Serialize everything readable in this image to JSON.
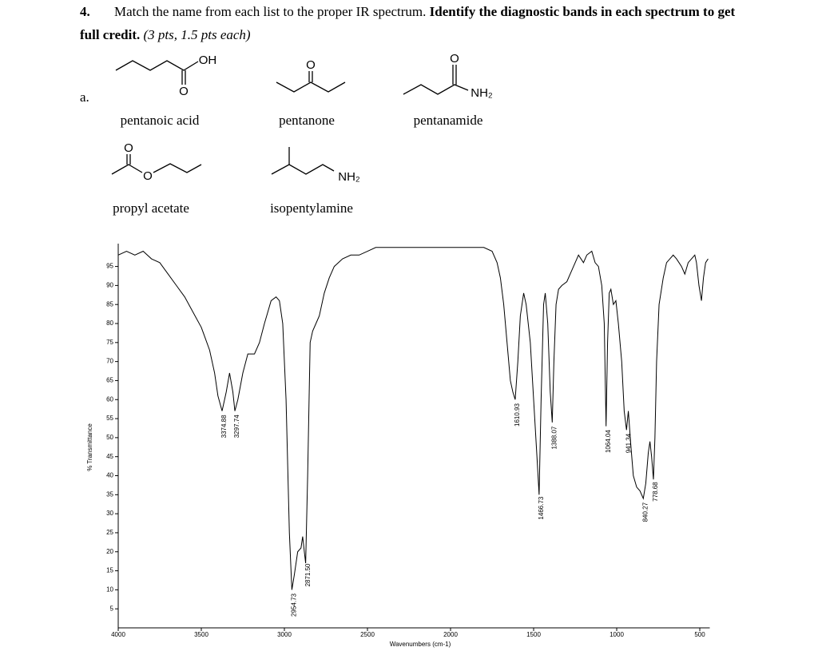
{
  "question": {
    "number": "4.",
    "instruction": "Match the name from each list to the proper IR spectrum. ",
    "bold_line1": "Identify the diagnostic bands in each spectrum to get",
    "bold_line2": "full credit. ",
    "points": "(3 pts, 1.5 pts each)",
    "part": "a."
  },
  "molecules": [
    {
      "name": "pentanoic acid",
      "atoms": [
        "OH",
        "O"
      ]
    },
    {
      "name": "pentanone",
      "atoms": [
        "O"
      ]
    },
    {
      "name": "pentanamide",
      "atoms": [
        "O",
        "NH₂"
      ]
    },
    {
      "name": "propyl acetate",
      "atoms": [
        "O",
        "O"
      ]
    },
    {
      "name": "isopentylamine",
      "atoms": [
        "NH₂"
      ]
    }
  ],
  "chart_data": {
    "type": "line",
    "xlabel": "Wavenumbers (cm-1)",
    "ylabel": "% Transmittance",
    "color": "#000000",
    "xlim": [
      4000,
      440
    ],
    "ylim": [
      0,
      101
    ],
    "xticks": [
      4000,
      3500,
      3000,
      2500,
      2000,
      1500,
      1000,
      500
    ],
    "yticks": [
      5,
      10,
      15,
      20,
      25,
      30,
      35,
      40,
      45,
      50,
      55,
      60,
      65,
      70,
      75,
      80,
      85,
      90,
      95
    ],
    "x": [
      4000,
      3950,
      3900,
      3850,
      3800,
      3750,
      3700,
      3650,
      3600,
      3550,
      3500,
      3450,
      3420,
      3400,
      3375,
      3350,
      3330,
      3310,
      3298,
      3280,
      3250,
      3220,
      3180,
      3150,
      3120,
      3100,
      3080,
      3050,
      3030,
      3010,
      2990,
      2970,
      2955,
      2940,
      2920,
      2900,
      2890,
      2880,
      2872,
      2860,
      2845,
      2830,
      2810,
      2790,
      2760,
      2730,
      2700,
      2650,
      2600,
      2550,
      2500,
      2450,
      2400,
      2300,
      2200,
      2100,
      2000,
      1900,
      1800,
      1750,
      1720,
      1700,
      1680,
      1660,
      1640,
      1625,
      1611,
      1595,
      1580,
      1560,
      1545,
      1520,
      1500,
      1480,
      1467,
      1455,
      1440,
      1430,
      1415,
      1400,
      1388,
      1378,
      1365,
      1350,
      1330,
      1300,
      1280,
      1250,
      1230,
      1200,
      1180,
      1150,
      1130,
      1110,
      1090,
      1075,
      1064,
      1055,
      1045,
      1035,
      1020,
      1005,
      990,
      970,
      955,
      941,
      930,
      915,
      900,
      880,
      860,
      840,
      825,
      810,
      800,
      790,
      779,
      770,
      760,
      745,
      720,
      700,
      680,
      660,
      640,
      610,
      590,
      570,
      550,
      530,
      520,
      505,
      490,
      478,
      465,
      450
    ],
    "values": [
      98,
      99,
      98,
      99,
      97,
      96,
      93,
      90,
      87,
      83,
      79,
      73,
      67,
      61,
      57,
      62,
      67,
      62,
      57,
      60,
      67,
      72,
      72,
      75,
      80,
      83,
      86,
      87,
      86,
      80,
      60,
      25,
      10,
      14,
      20,
      21,
      24,
      20,
      17,
      40,
      75,
      78,
      80,
      82,
      88,
      92,
      95,
      97,
      98,
      98,
      99,
      100,
      100,
      100,
      100,
      100,
      100,
      100,
      100,
      99,
      96,
      92,
      85,
      75,
      65,
      62,
      60,
      70,
      82,
      88,
      85,
      75,
      60,
      45,
      35,
      60,
      85,
      88,
      80,
      62,
      54,
      70,
      85,
      89,
      90,
      91,
      93,
      96,
      98,
      96,
      98,
      99,
      96,
      95,
      90,
      80,
      53,
      75,
      88,
      89,
      85,
      86,
      80,
      70,
      57,
      52,
      57,
      48,
      40,
      37,
      36,
      34,
      38,
      46,
      49,
      45,
      39,
      50,
      70,
      85,
      92,
      96,
      97,
      98,
      97,
      95,
      93,
      96,
      97,
      98,
      96,
      90,
      86,
      92,
      96,
      97
    ],
    "annotations": [
      {
        "value": 3374.88,
        "label": "3374.88"
      },
      {
        "value": 3297.74,
        "label": "3297.74"
      },
      {
        "value": 2954.73,
        "label": "2954.73"
      },
      {
        "value": 2871.5,
        "label": "2871.50"
      },
      {
        "value": 1610.93,
        "label": "1610.93"
      },
      {
        "value": 1466.73,
        "label": "1466.73"
      },
      {
        "value": 1388.07,
        "label": "1388.07"
      },
      {
        "value": 1064.04,
        "label": "1064.04"
      },
      {
        "value": 941.34,
        "label": "941.34"
      },
      {
        "value": 840.27,
        "label": "840.27"
      },
      {
        "value": 778.68,
        "label": "778.68"
      }
    ]
  }
}
